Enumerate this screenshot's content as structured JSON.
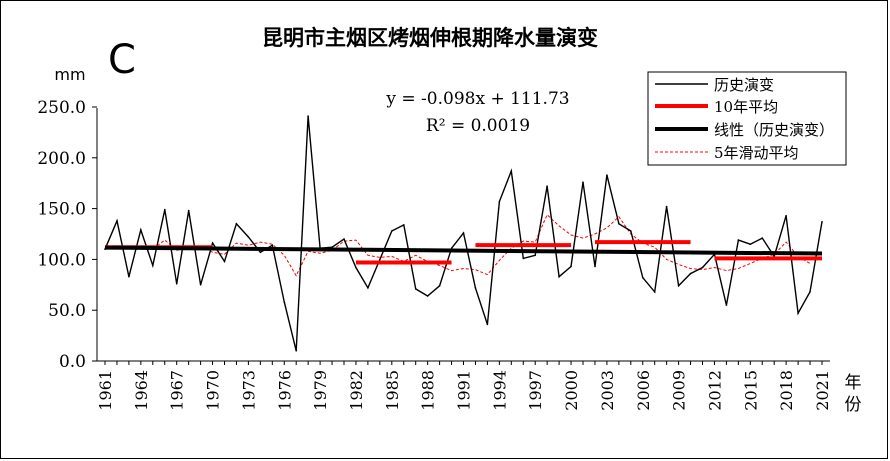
{
  "chart_data": {
    "type": "line",
    "panel_letter": "C",
    "title": "昆明市主烟区烤烟伸根期降水量演变",
    "ylabel": "mm",
    "xlabel": "年份",
    "ylim": [
      0,
      250
    ],
    "yticks": [
      "0.0",
      "50.0",
      "100.0",
      "150.0",
      "200.0",
      "250.0"
    ],
    "xticks": [
      "1961",
      "1964",
      "1967",
      "1970",
      "1973",
      "1976",
      "1979",
      "1982",
      "1985",
      "1988",
      "1991",
      "1994",
      "1997",
      "2000",
      "2003",
      "2006",
      "2009",
      "2012",
      "2015",
      "2018",
      "2021"
    ],
    "grid": false,
    "legend_position": "top-right",
    "equation": "y = -0.098x + 111.73",
    "r2_text": "R² = 0.0019",
    "years": [
      1961,
      1962,
      1963,
      1964,
      1965,
      1966,
      1967,
      1968,
      1969,
      1970,
      1971,
      1972,
      1973,
      1974,
      1975,
      1976,
      1977,
      1978,
      1979,
      1980,
      1981,
      1982,
      1983,
      1984,
      1985,
      1986,
      1987,
      1988,
      1989,
      1990,
      1991,
      1992,
      1993,
      1994,
      1995,
      1996,
      1997,
      1998,
      1999,
      2000,
      2001,
      2002,
      2003,
      2004,
      2005,
      2006,
      2007,
      2008,
      2009,
      2010,
      2011,
      2012,
      2013,
      2014,
      2015,
      2016,
      2017,
      2018,
      2019,
      2020,
      2021
    ],
    "series": [
      {
        "name": "历史演变",
        "color": "#000000",
        "values": [
          110,
          138,
          83,
          129,
          94,
          149,
          76,
          148,
          75,
          116,
          98,
          135,
          122,
          107,
          114,
          58,
          10,
          241,
          111,
          112,
          120,
          92,
          72,
          100,
          128,
          134,
          71,
          64,
          74,
          111,
          126,
          72,
          36,
          157,
          187,
          101,
          104,
          172,
          83,
          93,
          176,
          93,
          183,
          135,
          128,
          82,
          68,
          152,
          74,
          86,
          92,
          105,
          55,
          119,
          115,
          121,
          103,
          143,
          47,
          68,
          137
        ]
      },
      {
        "name": "10年平均",
        "color": "#ff0000",
        "segments": [
          {
            "start": 1961,
            "end": 1970,
            "value": 112
          },
          {
            "start": 1982,
            "end": 1990,
            "value": 97
          },
          {
            "start": 1992,
            "end": 2000,
            "value": 114
          },
          {
            "start": 2002,
            "end": 2010,
            "value": 117
          },
          {
            "start": 2012,
            "end": 2021,
            "value": 101
          }
        ]
      },
      {
        "name": "线性（历史演变）",
        "color": "#000000",
        "slope": -0.098,
        "intercept": 111.73
      },
      {
        "name": "5年滑动平均",
        "color": "#ff0000",
        "values": [
          null,
          null,
          111,
          113,
          110,
          119,
          109,
          112,
          113,
          107,
          105,
          116,
          114,
          117,
          115,
          104,
          84,
          108,
          106,
          109,
          118,
          119,
          104,
          102,
          103,
          98,
          104,
          98,
          94,
          89,
          91,
          90,
          85,
          99,
          111,
          118,
          117,
          144,
          133,
          124,
          121,
          125,
          131,
          142,
          125,
          116,
          112,
          100,
          95,
          91,
          90,
          92,
          89,
          91,
          96,
          101,
          105,
          117,
          103,
          96,
          null
        ]
      }
    ]
  }
}
